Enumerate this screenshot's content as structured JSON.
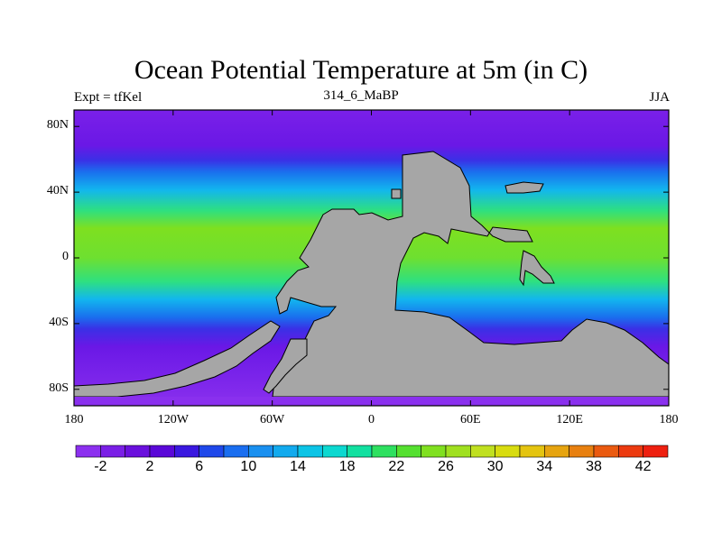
{
  "title": "Ocean Potential Temperature at 5m (in C)",
  "subtitle_left": "Expt = tfKel",
  "subtitle_center": "314_6_MaBP",
  "subtitle_right": "JJA",
  "lat_ticks": [
    {
      "label": "80N",
      "lat": 80
    },
    {
      "label": "40N",
      "lat": 40
    },
    {
      "label": "0",
      "lat": 0
    },
    {
      "label": "40S",
      "lat": -40
    },
    {
      "label": "80S",
      "lat": -80
    }
  ],
  "lon_ticks": [
    {
      "label": "180",
      "lon": -180
    },
    {
      "label": "120W",
      "lon": -120
    },
    {
      "label": "60W",
      "lon": -60
    },
    {
      "label": "0",
      "lon": 0
    },
    {
      "label": "60E",
      "lon": 60
    },
    {
      "label": "120E",
      "lon": 120
    },
    {
      "label": "180",
      "lon": 180
    }
  ],
  "colors": {
    "land": "#a6a6a6",
    "colorbar": [
      "#8c30ef",
      "#7a1fe6",
      "#6a10dd",
      "#5a08d8",
      "#3a18e0",
      "#1f48ea",
      "#1a6ef0",
      "#1a90f0",
      "#12aaee",
      "#0cc4e6",
      "#0cd8d0",
      "#12e0a0",
      "#2ee060",
      "#55e030",
      "#80e020",
      "#a0e020",
      "#c0e020",
      "#d8dc10",
      "#e4c410",
      "#e6a410",
      "#e88010",
      "#ea5a10",
      "#ec3a10",
      "#ee2010"
    ],
    "sea": {
      "cold": "#6a18e6",
      "cool": "#2a60ee",
      "mid": "#12b6ee",
      "warm": "#3ae070",
      "hot": "#7ee020"
    }
  },
  "colorbar_labels": [
    "-2",
    "2",
    "6",
    "10",
    "14",
    "18",
    "22",
    "26",
    "30",
    "34",
    "38",
    "42"
  ]
}
